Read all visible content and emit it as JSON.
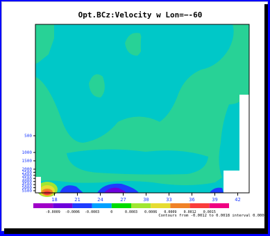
{
  "window": {
    "title": "Opt.BCz:Velocity w Lon=−-60"
  },
  "chart_data": {
    "type": "heatmap",
    "title": "Opt.BCz:Velocity w Lon=−-60",
    "x_ticks": [
      "18",
      "21",
      "24",
      "27",
      "30",
      "33",
      "36",
      "39",
      "42"
    ],
    "x_tick_values": [
      18,
      21,
      24,
      27,
      30,
      33,
      36,
      39,
      42
    ],
    "y_ticks": [
      "500",
      "1000",
      "1500",
      "2000",
      "2500",
      "3000",
      "3500",
      "4000",
      "4500",
      "5000",
      "5500"
    ],
    "y_tick_values": [
      500,
      1000,
      1500,
      2000,
      2500,
      3000,
      3500,
      4000,
      4500,
      5000,
      5500
    ],
    "xlim": [
      15.5,
      43.5
    ],
    "legend": {
      "labels": [
        "-0.0009",
        "-0.0006",
        "-0.0003",
        "0",
        "0.0003",
        "0.0006",
        "0.0009",
        "0.0012",
        "0.0015"
      ],
      "colors": [
        "#a000c8",
        "#6e00dc",
        "#1e3cff",
        "#00a0ff",
        "#00dc00",
        "#a0e632",
        "#e6dc32",
        "#f08228",
        "#fa3c3c",
        "#f00082"
      ],
      "note": "Contours from -0.0012 to 0.0018 interval 0.0003"
    },
    "field_colors": {
      "teal": "#00c8c8",
      "green": "#28d296",
      "blue": "#1e3cff",
      "red": "#fa3c3c",
      "orange": "#f08228",
      "yellow": "#e6dc32",
      "lightgreen": "#a0e632",
      "purple": "#a000c8",
      "magenta": "#f00082"
    }
  }
}
